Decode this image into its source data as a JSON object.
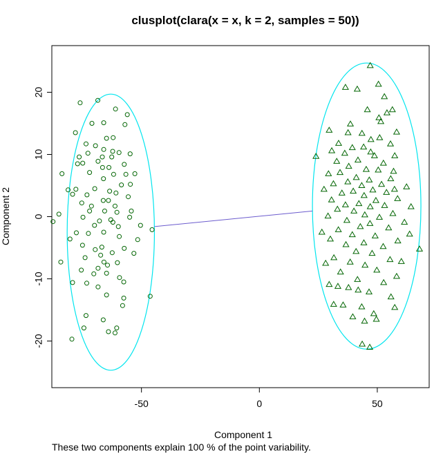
{
  "chart_data": {
    "type": "scatter",
    "title": "clusplot(clara(x = x, k = 2, samples = 50))",
    "xlabel": "Component 1",
    "ylabel": "Component 2",
    "subtitle": "These two components explain 100 % of the point variability.",
    "xlim": [
      -88,
      72
    ],
    "ylim": [
      -27.5,
      27.5
    ],
    "xticks": [
      -50,
      0,
      50
    ],
    "yticks": [
      -20,
      -10,
      0,
      10,
      20
    ],
    "grid": false,
    "legend": "none",
    "colors": {
      "points": "#006400",
      "ellipse": "#00e5ee",
      "connector": "#6a5acd",
      "frame": "#000000"
    },
    "ellipses": [
      {
        "cluster": 1,
        "center": [
          -63,
          -2.5
        ],
        "radius_x": 18.5,
        "radius_y": 22.2
      },
      {
        "cluster": 2,
        "center": [
          45.5,
          1.7
        ],
        "radius_x": 23,
        "radius_y": 23
      }
    ],
    "connector": {
      "from": [
        -44.5,
        -1.6
      ],
      "to": [
        22.5,
        0.9
      ]
    },
    "series": [
      {
        "cluster": 1,
        "marker": "circle",
        "points": [
          [
            -76,
            18.3
          ],
          [
            -68.5,
            18.7
          ],
          [
            -56,
            16.4
          ],
          [
            -61,
            17.3
          ],
          [
            -57,
            14.8
          ],
          [
            -78,
            13.5
          ],
          [
            -71,
            15
          ],
          [
            -66,
            15.1
          ],
          [
            -62,
            12.7
          ],
          [
            -64.8,
            12.6
          ],
          [
            -69.5,
            11.4
          ],
          [
            -73.5,
            11.7
          ],
          [
            -59.5,
            10.3
          ],
          [
            -66,
            10.8
          ],
          [
            -72.7,
            10.2
          ],
          [
            -62.6,
            9.6
          ],
          [
            -76.4,
            9.6
          ],
          [
            -66.6,
            9.6
          ],
          [
            -54.8,
            10.1
          ],
          [
            -62.2,
            10.5
          ],
          [
            -57.3,
            8.4
          ],
          [
            -68.4,
            8.9
          ],
          [
            -77.1,
            8.5
          ],
          [
            -74.9,
            8.6
          ],
          [
            -66.5,
            7.9
          ],
          [
            -63.8,
            7.9
          ],
          [
            -61.8,
            6.8
          ],
          [
            -56.6,
            6.8
          ],
          [
            -83.7,
            6.9
          ],
          [
            -72,
            7.1
          ],
          [
            -66.1,
            6.1
          ],
          [
            -52.8,
            6.9
          ],
          [
            -54.7,
            5.2
          ],
          [
            -58.5,
            5.1
          ],
          [
            -63.5,
            4.1
          ],
          [
            -81.1,
            4.3
          ],
          [
            -77.8,
            4.4
          ],
          [
            -75.3,
            2.2
          ],
          [
            -60.8,
            3.8
          ],
          [
            -64,
            2.6
          ],
          [
            -69.8,
            4.5
          ],
          [
            -79.2,
            3.6
          ],
          [
            -73.1,
            3.5
          ],
          [
            -66.2,
            2.6
          ],
          [
            -55.6,
            3.2
          ],
          [
            -71.2,
            1.7
          ],
          [
            -61.2,
            1.7
          ],
          [
            -65.6,
            0.9
          ],
          [
            -72,
            0.9
          ],
          [
            -85,
            0.4
          ],
          [
            -63,
            -0.5
          ],
          [
            -67.8,
            -0.7
          ],
          [
            -55,
            -0.1
          ],
          [
            -74.8,
            -0.1
          ],
          [
            -62.1,
            -0.9
          ],
          [
            -69.9,
            -1.4
          ],
          [
            -59.8,
            -1.6
          ],
          [
            -50.4,
            -1.4
          ],
          [
            -66,
            -2.5
          ],
          [
            -72.5,
            -2.7
          ],
          [
            -87.5,
            -0.8
          ],
          [
            -80.3,
            -3.6
          ],
          [
            -75,
            -4.6
          ],
          [
            -66.8,
            -4.9
          ],
          [
            -69.6,
            -5.3
          ],
          [
            -62.4,
            -5.8
          ],
          [
            -57.3,
            -5.1
          ],
          [
            -73.9,
            -6.6
          ],
          [
            -65.9,
            -7.3
          ],
          [
            -60.2,
            -7.4
          ],
          [
            -53.2,
            -5.9
          ],
          [
            -68.4,
            -8.3
          ],
          [
            -75.5,
            -8.6
          ],
          [
            -70.2,
            -9.2
          ],
          [
            -59.3,
            -9.8
          ],
          [
            -64.8,
            -9.1
          ],
          [
            -57.5,
            -10.5
          ],
          [
            -79.2,
            -10.6
          ],
          [
            -73.2,
            -10.7
          ],
          [
            -68.4,
            -11.3
          ],
          [
            -84.2,
            -7.3
          ],
          [
            -64.8,
            -12.6
          ],
          [
            -57.5,
            -13.1
          ],
          [
            -73.5,
            -15.9
          ],
          [
            -66.2,
            -16.6
          ],
          [
            -58,
            -14.3
          ],
          [
            -46.3,
            -12.8
          ],
          [
            -79.5,
            -19.7
          ],
          [
            -64,
            -18.5
          ],
          [
            -60.5,
            -17.9
          ],
          [
            -74.4,
            -17.9
          ],
          [
            -61.2,
            -18.7
          ],
          [
            -45.5,
            -2.1
          ],
          [
            -51.6,
            -3.7
          ],
          [
            -59.4,
            -3.2
          ],
          [
            -77.6,
            -2.6
          ],
          [
            -60.4,
            0.7
          ],
          [
            -54.3,
            0.9
          ],
          [
            -64.4,
            -7.8
          ],
          [
            -67.3,
            -6.2
          ]
        ]
      },
      {
        "cluster": 2,
        "marker": "triangle",
        "points": [
          [
            47,
            24.3
          ],
          [
            50.5,
            21.3
          ],
          [
            36.5,
            20.8
          ],
          [
            41.5,
            20.5
          ],
          [
            53,
            19.3
          ],
          [
            45.8,
            17.2
          ],
          [
            56.4,
            17.2
          ],
          [
            54.1,
            16.7
          ],
          [
            51.5,
            15.3
          ],
          [
            58.2,
            13.6
          ],
          [
            29.6,
            13.9
          ],
          [
            37.6,
            13.5
          ],
          [
            43.5,
            13.4
          ],
          [
            51,
            12.7
          ],
          [
            47.3,
            12.4
          ],
          [
            33.6,
            11.8
          ],
          [
            39.4,
            11.1
          ],
          [
            55.6,
            11.7
          ],
          [
            44.2,
            11.2
          ],
          [
            30.7,
            10.6
          ],
          [
            36.2,
            10.2
          ],
          [
            24,
            9.7
          ],
          [
            48.8,
            9.8
          ],
          [
            57.4,
            9.8
          ],
          [
            41.8,
            9.1
          ],
          [
            32.8,
            8.9
          ],
          [
            52.6,
            8.6
          ],
          [
            37.9,
            8.1
          ],
          [
            45.3,
            7.6
          ],
          [
            50.4,
            7.5
          ],
          [
            34.2,
            7.1
          ],
          [
            29.3,
            6.9
          ],
          [
            41.1,
            6.3
          ],
          [
            55.7,
            6.1
          ],
          [
            46.6,
            5.9
          ],
          [
            37.5,
            5.6
          ],
          [
            51.8,
            5.2
          ],
          [
            31.4,
            5.3
          ],
          [
            43.4,
            5
          ],
          [
            27.4,
            4.4
          ],
          [
            57.3,
            4.4
          ],
          [
            48.1,
            4.3
          ],
          [
            39.8,
            4.1
          ],
          [
            53.9,
            3.9
          ],
          [
            35,
            3.8
          ],
          [
            44.4,
            3.4
          ],
          [
            30.6,
            2.7
          ],
          [
            49.4,
            2.6
          ],
          [
            58.6,
            2.9
          ],
          [
            42.2,
            2.1
          ],
          [
            36.5,
            1.9
          ],
          [
            53.1,
            1.8
          ],
          [
            47,
            1.6
          ],
          [
            33.1,
            1.2
          ],
          [
            64.3,
            1.6
          ],
          [
            40.1,
            0.9
          ],
          [
            56.6,
            0.5
          ],
          [
            44.7,
            0.3
          ],
          [
            29.1,
            0.1
          ],
          [
            50.9,
            -0.1
          ],
          [
            37.1,
            -0.6
          ],
          [
            61.5,
            -0.9
          ],
          [
            46.9,
            -1.1
          ],
          [
            42.8,
            -1.6
          ],
          [
            54.8,
            -1.8
          ],
          [
            33.5,
            -2.1
          ],
          [
            39.4,
            -2.9
          ],
          [
            49.1,
            -3.1
          ],
          [
            30.1,
            -3.6
          ],
          [
            58.7,
            -3.9
          ],
          [
            44.3,
            -4.2
          ],
          [
            36.7,
            -4.5
          ],
          [
            52.5,
            -4.8
          ],
          [
            41,
            -5.6
          ],
          [
            47.8,
            -5.9
          ],
          [
            67.9,
            -5.2
          ],
          [
            31.6,
            -6.6
          ],
          [
            55.4,
            -6.9
          ],
          [
            38.5,
            -7.3
          ],
          [
            44.8,
            -7.8
          ],
          [
            49.8,
            -8.6
          ],
          [
            34.4,
            -8.9
          ],
          [
            58.2,
            -9.6
          ],
          [
            41.6,
            -10.1
          ],
          [
            52.7,
            -10.6
          ],
          [
            29.6,
            -10.9
          ],
          [
            37.8,
            -11.4
          ],
          [
            46.5,
            -12.1
          ],
          [
            55.8,
            -12.9
          ],
          [
            31.5,
            -14.1
          ],
          [
            43.4,
            -14.5
          ],
          [
            39.6,
            -16.1
          ],
          [
            48.5,
            -15.6
          ],
          [
            57.4,
            -14.6
          ],
          [
            44.6,
            -16.8
          ],
          [
            49.6,
            -16.5
          ],
          [
            43.6,
            -20.5
          ],
          [
            46.8,
            -21
          ],
          [
            35.5,
            -14.2
          ],
          [
            60.2,
            -7.2
          ],
          [
            26.5,
            -2.5
          ],
          [
            62.4,
            4.8
          ],
          [
            63.7,
            -2.8
          ],
          [
            38.6,
            14.9
          ],
          [
            33.3,
            -11.2
          ],
          [
            50.7,
            15.9
          ],
          [
            41.9,
            -11.8
          ],
          [
            56.9,
            7.3
          ],
          [
            28.1,
            -7.5
          ],
          [
            47.2,
            10.4
          ]
        ]
      }
    ]
  }
}
